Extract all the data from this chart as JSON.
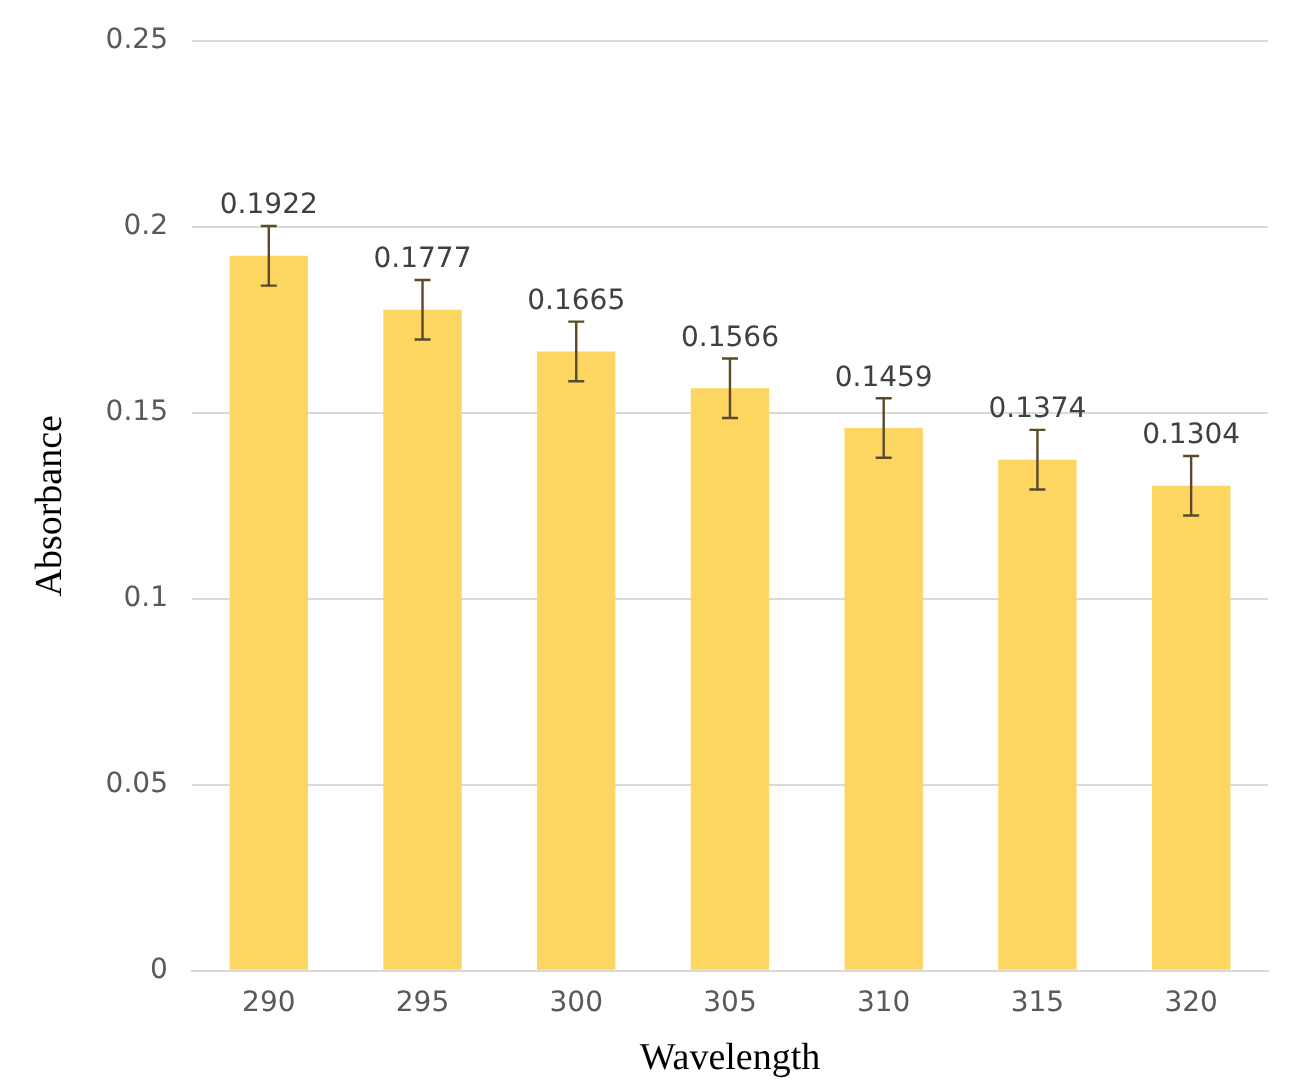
{
  "chart_data": {
    "type": "bar",
    "xlabel": "Wavelength",
    "ylabel": "Absorbance",
    "categories": [
      "290",
      "295",
      "300",
      "305",
      "310",
      "315",
      "320"
    ],
    "values": [
      0.1922,
      0.1777,
      0.1665,
      0.1566,
      0.1459,
      0.1374,
      0.1304
    ],
    "errors": [
      0.008,
      0.008,
      0.008,
      0.008,
      0.008,
      0.008,
      0.008
    ],
    "color": "#fdd662",
    "ylim": [
      0,
      0.25
    ],
    "yticks": [
      0,
      0.05,
      0.1,
      0.15,
      0.2,
      0.25
    ],
    "grid": "y",
    "data_labels": true
  }
}
